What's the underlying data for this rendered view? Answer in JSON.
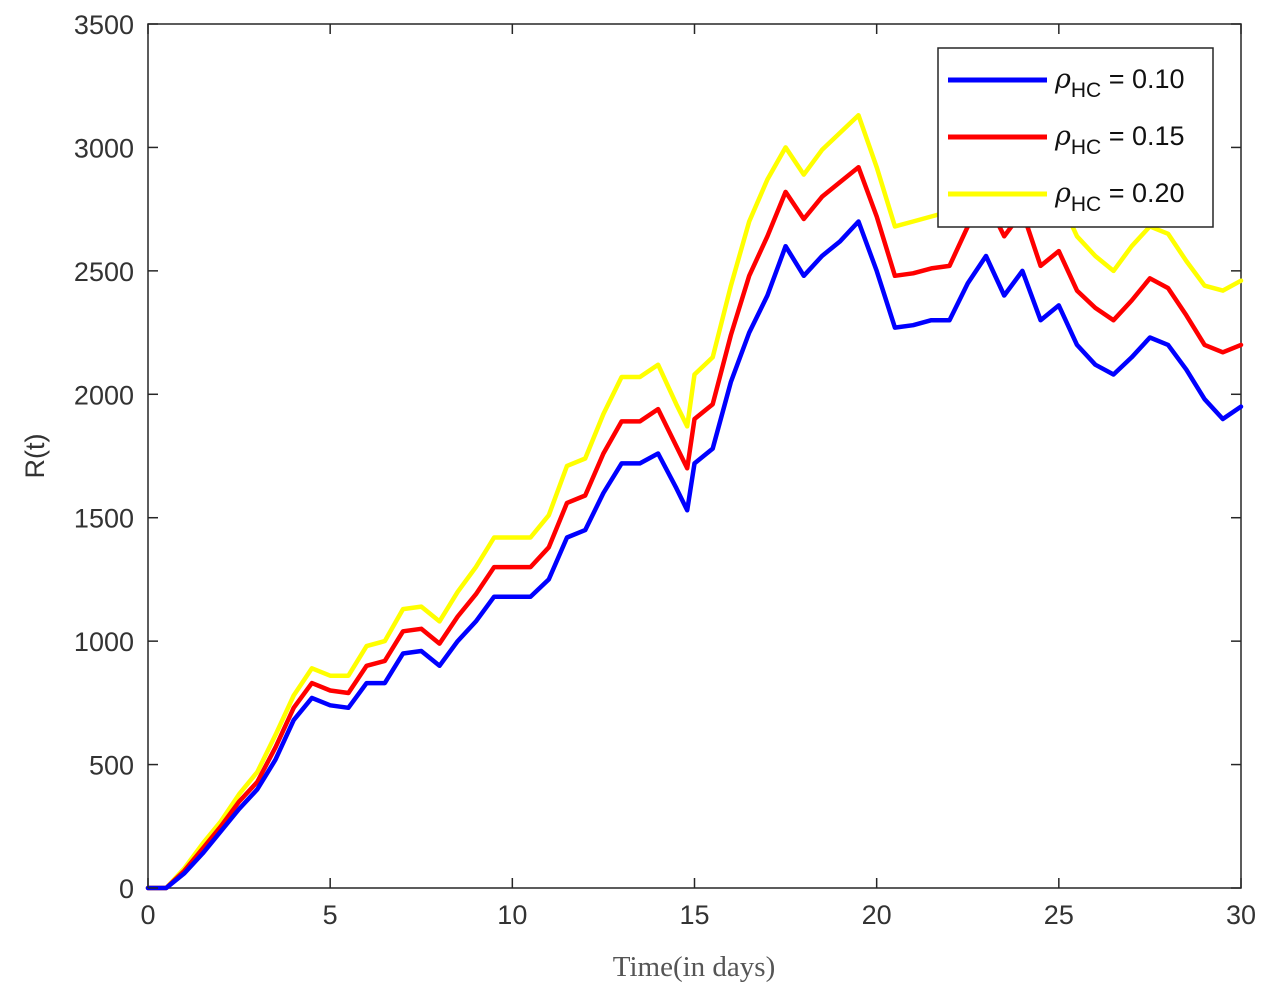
{
  "chart_data": {
    "type": "line",
    "title": "",
    "xlabel": "Time(in days)",
    "ylabel": "R(t)",
    "xlim": [
      0,
      30
    ],
    "ylim": [
      0,
      3500
    ],
    "xticks": [
      0,
      5,
      10,
      15,
      20,
      25,
      30
    ],
    "yticks": [
      0,
      500,
      1000,
      1500,
      2000,
      2500,
      3000,
      3500
    ],
    "grid": false,
    "legend_position": "top-right",
    "x": [
      0,
      0.5,
      1,
      1.5,
      2,
      2.5,
      3,
      3.5,
      4,
      4.5,
      5,
      5.5,
      6,
      6.5,
      7,
      7.5,
      8,
      8.5,
      9,
      9.5,
      10,
      10.5,
      11,
      11.5,
      12,
      12.5,
      13,
      13.5,
      14,
      14.5,
      14.8,
      15,
      15.5,
      16,
      16.5,
      17,
      17.5,
      18,
      18.5,
      19,
      19.5,
      20,
      20.5,
      21,
      21.5,
      22,
      22.5,
      23,
      23.5,
      24,
      24.5,
      25,
      25.5,
      26,
      26.5,
      27,
      27.5,
      28,
      28.5,
      29,
      29.5,
      30
    ],
    "series": [
      {
        "name": "= 0.10",
        "name_symbol": "ρ",
        "name_subscript": "HC",
        "color": "#0000ff",
        "values": [
          0,
          0,
          60,
          140,
          230,
          320,
          400,
          520,
          680,
          770,
          740,
          730,
          830,
          830,
          950,
          960,
          900,
          1000,
          1080,
          1180,
          1180,
          1180,
          1250,
          1420,
          1450,
          1600,
          1720,
          1720,
          1760,
          1620,
          1530,
          1720,
          1780,
          2050,
          2250,
          2400,
          2600,
          2480,
          2560,
          2620,
          2700,
          2500,
          2270,
          2280,
          2300,
          2300,
          2450,
          2560,
          2400,
          2500,
          2300,
          2360,
          2200,
          2120,
          2080,
          2150,
          2230,
          2200,
          2100,
          1980,
          1900,
          1950
        ]
      },
      {
        "name": "= 0.15",
        "name_symbol": "ρ",
        "name_subscript": "HC",
        "color": "#ff0000",
        "values": [
          0,
          0,
          70,
          160,
          250,
          350,
          430,
          570,
          730,
          830,
          800,
          790,
          900,
          920,
          1040,
          1050,
          990,
          1100,
          1190,
          1300,
          1300,
          1300,
          1380,
          1560,
          1590,
          1760,
          1890,
          1890,
          1940,
          1790,
          1700,
          1900,
          1960,
          2240,
          2480,
          2640,
          2820,
          2710,
          2800,
          2860,
          2920,
          2720,
          2480,
          2490,
          2510,
          2520,
          2680,
          2790,
          2640,
          2740,
          2520,
          2580,
          2420,
          2350,
          2300,
          2380,
          2470,
          2430,
          2320,
          2200,
          2170,
          2200
        ]
      },
      {
        "name": "= 0.20",
        "name_symbol": "ρ",
        "name_subscript": "HC",
        "color": "#ffff00",
        "values": [
          0,
          0,
          80,
          180,
          270,
          380,
          470,
          620,
          780,
          890,
          860,
          860,
          980,
          1000,
          1130,
          1140,
          1080,
          1200,
          1300,
          1420,
          1420,
          1420,
          1510,
          1710,
          1740,
          1920,
          2070,
          2070,
          2120,
          1960,
          1870,
          2080,
          2150,
          2440,
          2700,
          2870,
          3000,
          2890,
          2990,
          3060,
          3130,
          2920,
          2680,
          2700,
          2720,
          2740,
          2900,
          3020,
          2870,
          2970,
          2740,
          2800,
          2640,
          2560,
          2500,
          2600,
          2680,
          2650,
          2540,
          2440,
          2420,
          2460
        ]
      }
    ]
  }
}
